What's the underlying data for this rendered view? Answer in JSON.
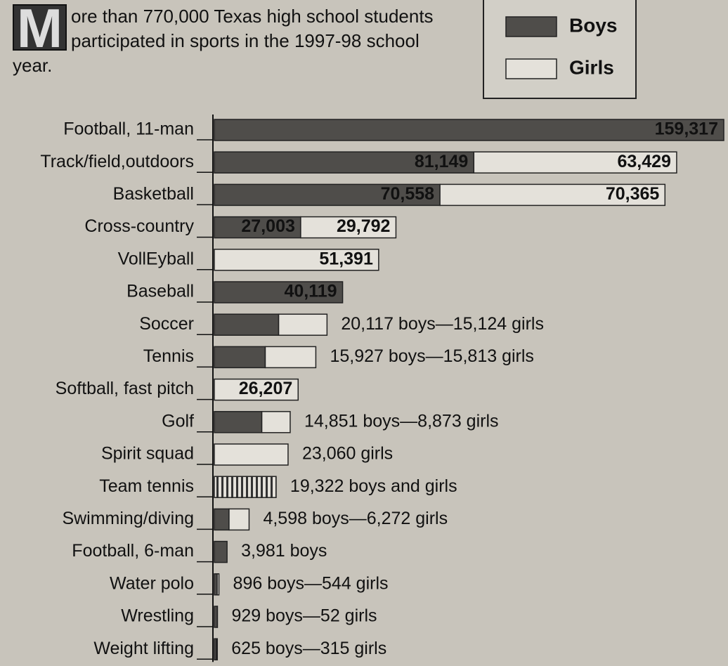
{
  "chart_data": {
    "type": "stacked-bar",
    "title": "More than 770,000 Texas high school students participated in sports in the 1997-98 school year.",
    "categories": [
      "Football, 11-man",
      "Track/field,outdoors",
      "Basketball",
      "Cross-country",
      "VollEyball",
      "Baseball",
      "Soccer",
      "Tennis",
      "Softball, fast pitch",
      "Golf",
      "Spirit squad",
      "Team tennis",
      "Swimming/diving",
      "Football, 6-man",
      "Water polo",
      "Wrestling",
      "Weight lifting"
    ],
    "series": [
      {
        "name": "Boys",
        "color": "#4f4d4a",
        "values": [
          159317,
          81149,
          70558,
          27003,
          null,
          40119,
          20117,
          15927,
          null,
          14851,
          null,
          null,
          4598,
          3981,
          896,
          929,
          625
        ],
        "value_labels": [
          "159,317",
          "81,149",
          "70,558",
          "27,003",
          null,
          "40,119",
          null,
          null,
          null,
          null,
          null,
          null,
          null,
          null,
          null,
          null,
          null
        ]
      },
      {
        "name": "Girls",
        "color": "#e4e1da",
        "values": [
          null,
          63429,
          70365,
          29792,
          51391,
          null,
          15124,
          15813,
          26207,
          8873,
          23060,
          null,
          6272,
          null,
          544,
          52,
          315
        ],
        "value_labels": [
          null,
          "63,429",
          "70,365",
          "29,792",
          "51,391",
          null,
          null,
          null,
          "26,207",
          null,
          null,
          null,
          null,
          null,
          null,
          null,
          null
        ]
      }
    ],
    "combined_values": [
      null,
      null,
      null,
      null,
      null,
      null,
      null,
      null,
      null,
      null,
      null,
      19322,
      null,
      null,
      null,
      null,
      null
    ],
    "annotations": [
      null,
      null,
      null,
      null,
      null,
      null,
      "20,117 boys—15,124 girls",
      "15,927 boys—15,813 girls",
      null,
      "14,851 boys—8,873 girls",
      "23,060 girls",
      "19,322 boys and girls",
      "4,598 boys—6,272 girls",
      "3,981 boys",
      "896 boys—544 girls",
      "929 boys—52 girls",
      "625 boys—315 girls"
    ]
  }
}
